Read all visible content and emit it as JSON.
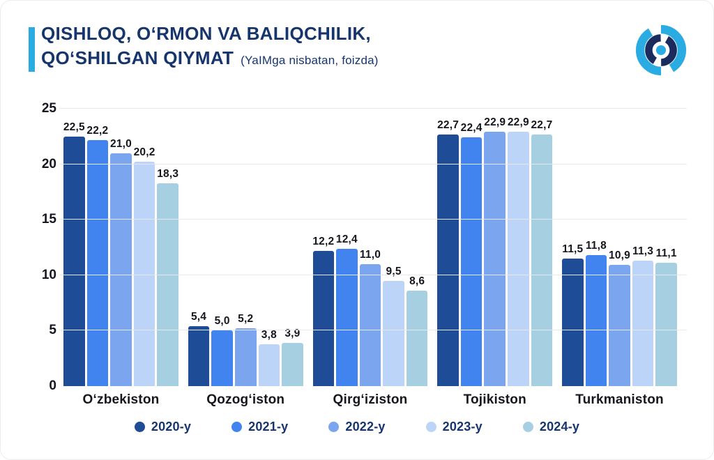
{
  "header": {
    "title_line1": "QISHLOQ, O‘RMON VA BALIQCHILIK,",
    "title_line2": "QO‘SHILGAN QIYMAT",
    "subtitle": "(YaIMga nisbatan, foizda)"
  },
  "logo": {
    "name": "statistics-agency-logo",
    "dark_color": "#1B2B5E",
    "light_color": "#2AACE2"
  },
  "colors": {
    "accent": "#2AACE2",
    "title": "#17356D",
    "grid": "#E7E8EB",
    "axis_text": "#16161E",
    "background": "#FFFFFF"
  },
  "chart_data": {
    "type": "bar",
    "title": "QISHLOQ, O‘RMON VA BALIQCHILIK, QO‘SHILGAN QIYMAT",
    "subtitle": "(YaIMga nisbatan, foizda)",
    "categories": [
      "O‘zbekiston",
      "Qozog‘iston",
      "Qirg‘iziston",
      "Tojikiston",
      "Turkmaniston"
    ],
    "series": [
      {
        "name": "2020-y",
        "color": "#1F4C96",
        "values": [
          22.5,
          5.4,
          12.2,
          22.7,
          11.5
        ],
        "labels": [
          "22,5",
          "5,4",
          "12,2",
          "22,7",
          "11,5"
        ]
      },
      {
        "name": "2021-y",
        "color": "#4184EF",
        "values": [
          22.2,
          5.0,
          12.4,
          22.4,
          11.8
        ],
        "labels": [
          "22,2",
          "5,0",
          "12,4",
          "22,4",
          "11,8"
        ]
      },
      {
        "name": "2022-y",
        "color": "#7CA5F0",
        "values": [
          21.0,
          5.2,
          11.0,
          22.9,
          10.9
        ],
        "labels": [
          "21,0",
          "5,2",
          "11,0",
          "22,9",
          "10,9"
        ]
      },
      {
        "name": "2023-y",
        "color": "#BCD4F8",
        "values": [
          20.2,
          3.8,
          9.5,
          22.9,
          11.3
        ],
        "labels": [
          "20,2",
          "3,8",
          "9,5",
          "22,9",
          "11,3"
        ]
      },
      {
        "name": "2024-y",
        "color": "#A7CFE2",
        "values": [
          18.3,
          3.9,
          8.6,
          22.7,
          11.1
        ],
        "labels": [
          "18,3",
          "3,9",
          "8,6",
          "22,7",
          "11,1"
        ]
      }
    ],
    "ylim": [
      0,
      25
    ],
    "yticks": [
      0,
      5,
      10,
      15,
      20,
      25
    ],
    "decimal_separator": ",",
    "grid": true,
    "legend_position": "bottom"
  }
}
